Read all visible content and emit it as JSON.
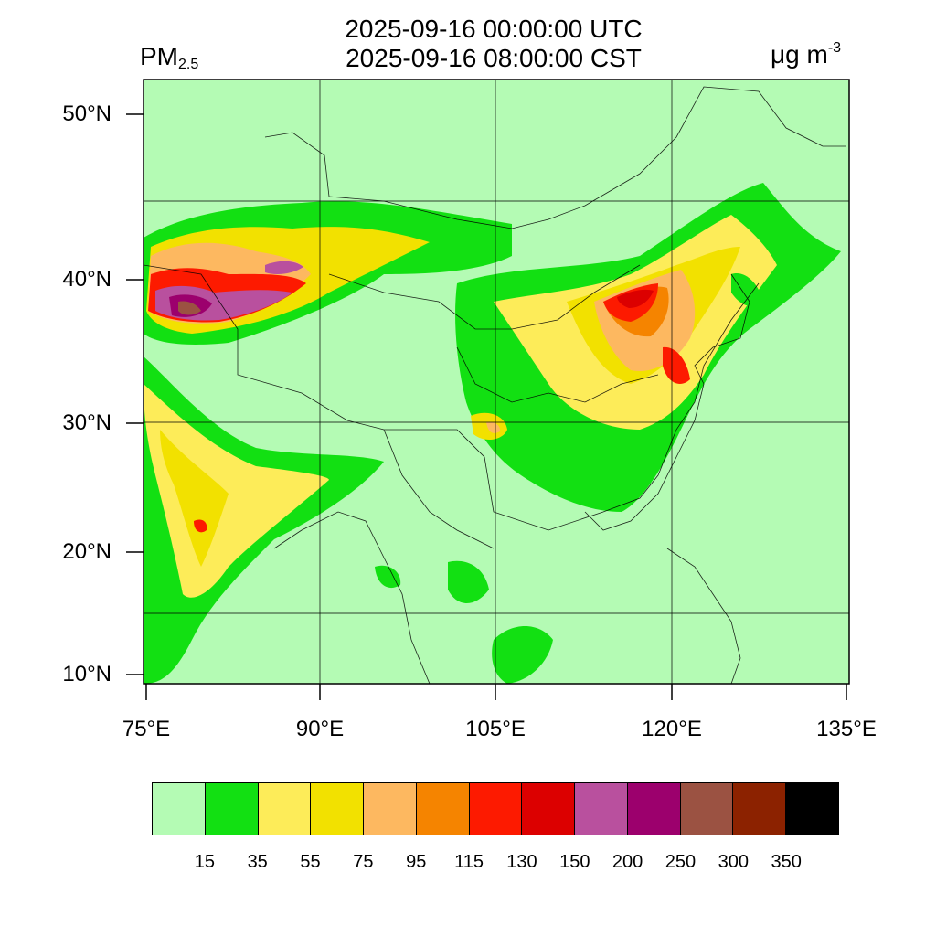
{
  "title_utc": "2025-09-16 00:00:00 UTC",
  "title_cst": "2025-09-16 08:00:00 CST",
  "variable": {
    "main": "PM",
    "sub": "2.5"
  },
  "unit": {
    "main": "μg m",
    "sup": "-3"
  },
  "latitude_labels": [
    "50°N",
    "40°N",
    "30°N",
    "20°N",
    "10°N"
  ],
  "longitude_labels": [
    "75°E",
    "90°E",
    "105°E",
    "120°E",
    "135°E"
  ],
  "colorbar": {
    "colors": [
      "#b4fbb4",
      "#12e012",
      "#fdec59",
      "#f2e100",
      "#fdb860",
      "#f58400",
      "#fd1a00",
      "#dc0000",
      "#b9509e",
      "#9c006d",
      "#9b5242",
      "#8c2200",
      "#000000"
    ],
    "labels": [
      "15",
      "35",
      "55",
      "75",
      "95",
      "115",
      "130",
      "150",
      "200",
      "250",
      "300",
      "350"
    ]
  }
}
